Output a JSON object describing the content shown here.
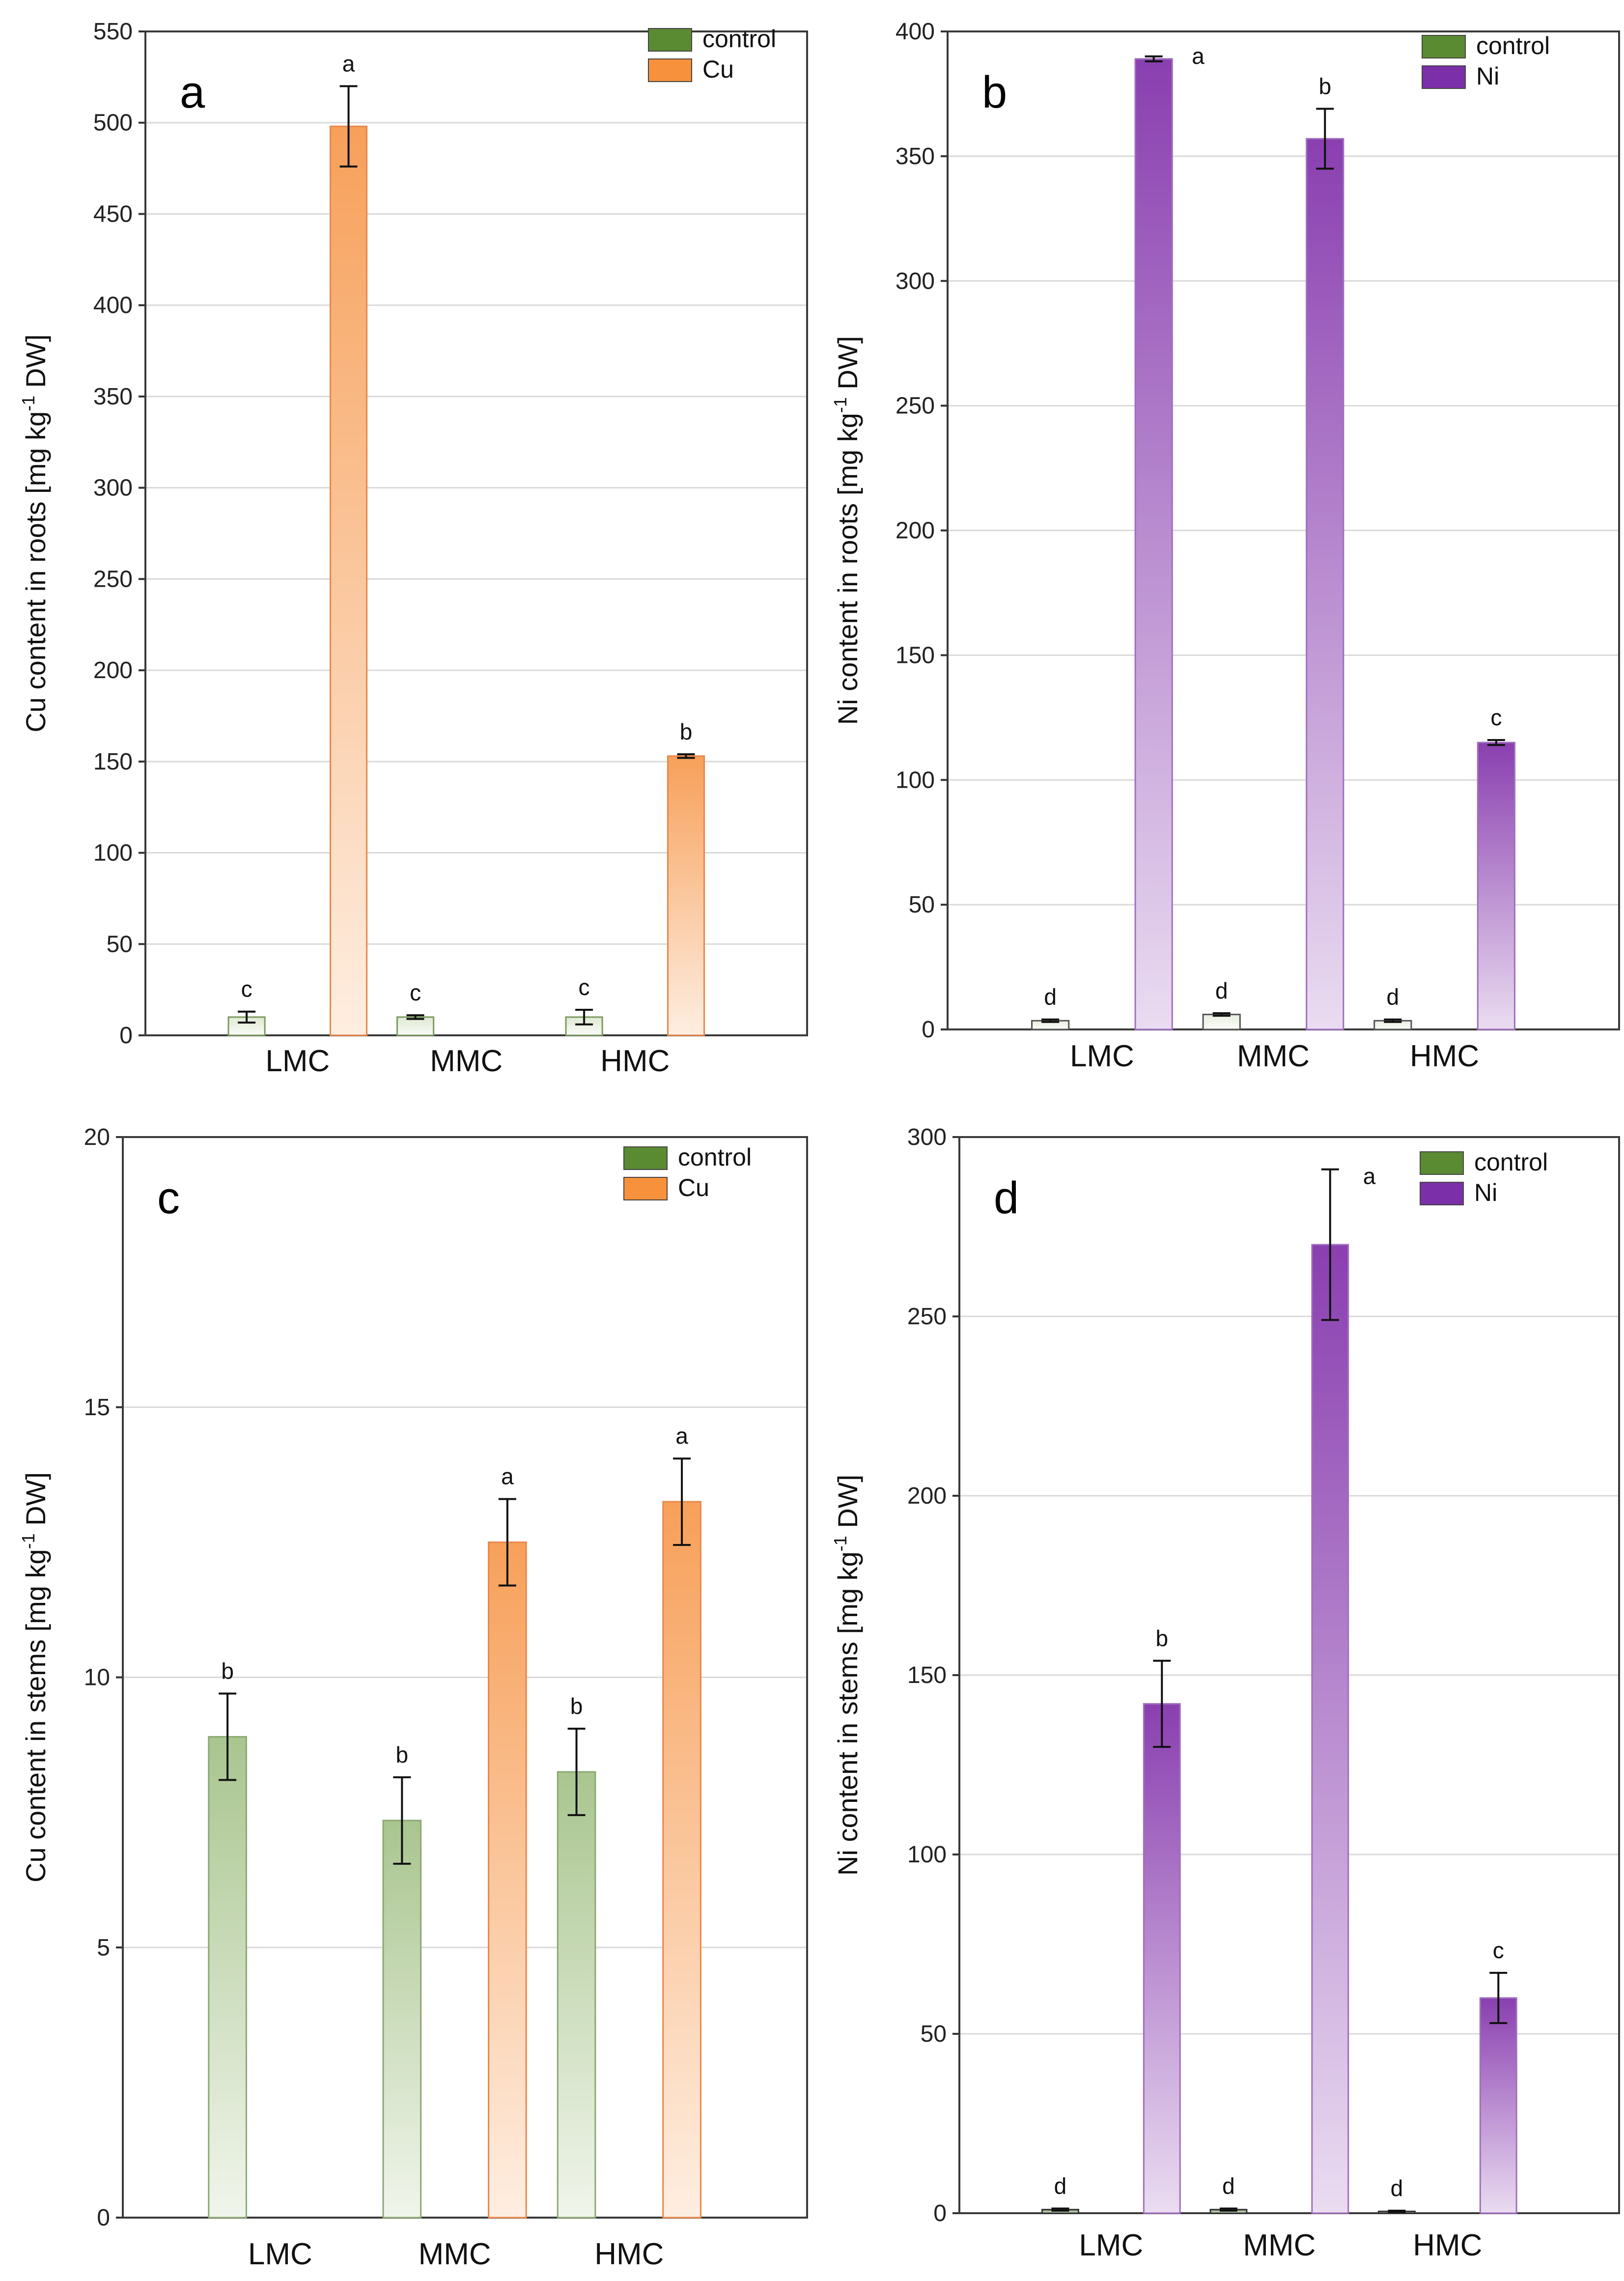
{
  "chart_data": [
    {
      "type": "bar",
      "panel": "a",
      "title": "",
      "xlabel": "",
      "ylabel": "Cu content in roots [mg kg-1 DW]",
      "ylabel_parts": {
        "before": "Cu content in roots [mg kg",
        "sup": "-1",
        "after": " DW]"
      },
      "ylim": [
        0,
        550
      ],
      "yticks": [
        0,
        50,
        100,
        150,
        200,
        250,
        300,
        350,
        400,
        450,
        500,
        550
      ],
      "categories": [
        "LMC",
        "MMC",
        "HMC"
      ],
      "legend_position": "top-right",
      "series": [
        {
          "name": "control",
          "color": "#dfe9d3",
          "edge": "#7a9a5e",
          "legend_color": "#5a8a32",
          "values": [
            10,
            10,
            10
          ],
          "errors": [
            3,
            1,
            4
          ],
          "labels": [
            "c",
            "c",
            "c"
          ]
        },
        {
          "name": "Cu",
          "color": "#f7a05a",
          "edge": "#e8874a",
          "legend_color": "#f7913b",
          "values": [
            498,
            null,
            153
          ],
          "errors": [
            22,
            null,
            1
          ],
          "labels": [
            "a",
            "",
            "b"
          ]
        }
      ]
    },
    {
      "type": "bar",
      "panel": "b",
      "title": "",
      "xlabel": "",
      "ylabel": "Ni content in roots [mg kg-1 DW]",
      "ylabel_parts": {
        "before": "Ni content in roots [mg kg",
        "sup": "-1",
        "after": " DW]"
      },
      "ylim": [
        0,
        400
      ],
      "yticks": [
        0,
        50,
        100,
        150,
        200,
        250,
        300,
        350,
        400
      ],
      "categories": [
        "LMC",
        "MMC",
        "HMC"
      ],
      "legend_position": "top-right",
      "series": [
        {
          "name": "control",
          "color": "#e8eee0",
          "edge": "#555555",
          "legend_color": "#5a8a32",
          "values": [
            3.5,
            6,
            3.5
          ],
          "errors": [
            0.5,
            0.5,
            0.5
          ],
          "labels": [
            "d",
            "d",
            "d"
          ]
        },
        {
          "name": "Ni",
          "color": "#8a3fb0",
          "edge": "#9f6fc0",
          "legend_color": "#7b2fa8",
          "values": [
            389,
            357,
            115
          ],
          "errors": [
            1,
            12,
            1
          ],
          "labels": [
            "a",
            "b",
            "c"
          ]
        }
      ]
    },
    {
      "type": "bar",
      "panel": "c",
      "title": "",
      "xlabel": "",
      "ylabel": "Cu content in stems [mg kg-1 DW]",
      "ylabel_parts": {
        "before": "Cu content in stems [mg kg",
        "sup": "-1",
        "after": " DW]"
      },
      "ylim": [
        0,
        20
      ],
      "yticks": [
        0,
        5,
        10,
        15,
        20
      ],
      "categories": [
        "LMC",
        "MMC",
        "HMC"
      ],
      "legend_position": "top-right",
      "series": [
        {
          "name": "control",
          "color": "#a9c58f",
          "edge": "#8aa873",
          "legend_color": "#5a8a32",
          "values": [
            8.9,
            7.35,
            8.25
          ],
          "errors": [
            0.8,
            0.8,
            0.8
          ],
          "labels": [
            "b",
            "b",
            "b"
          ]
        },
        {
          "name": "Cu",
          "color": "#f7a05a",
          "edge": "#e8874a",
          "legend_color": "#f7913b",
          "values": [
            null,
            12.5,
            13.25
          ],
          "errors": [
            null,
            0.8,
            0.8
          ],
          "labels": [
            "",
            "a",
            "a"
          ]
        }
      ]
    },
    {
      "type": "bar",
      "panel": "d",
      "title": "",
      "xlabel": "",
      "ylabel": "Ni content in stems [mg kg-1 DW]",
      "ylabel_parts": {
        "before": "Ni content in stems [mg kg",
        "sup": "-1",
        "after": " DW]"
      },
      "ylim": [
        0,
        300
      ],
      "yticks": [
        0,
        50,
        100,
        150,
        200,
        250,
        300
      ],
      "categories": [
        "LMC",
        "MMC",
        "HMC"
      ],
      "legend_position": "top-right",
      "series": [
        {
          "name": "control",
          "color": "#7a9a5e",
          "edge": "#333333",
          "legend_color": "#5a8a32",
          "values": [
            1,
            1,
            0.5
          ],
          "errors": [
            0.3,
            0.3,
            0.2
          ],
          "labels": [
            "d",
            "d",
            "d"
          ]
        },
        {
          "name": "Ni",
          "color": "#8a3fb0",
          "edge": "#9f6fc0",
          "legend_color": "#7b2fa8",
          "values": [
            142,
            270,
            60
          ],
          "errors": [
            12,
            21,
            7
          ],
          "labels": [
            "b",
            "a",
            "c"
          ]
        }
      ]
    }
  ]
}
